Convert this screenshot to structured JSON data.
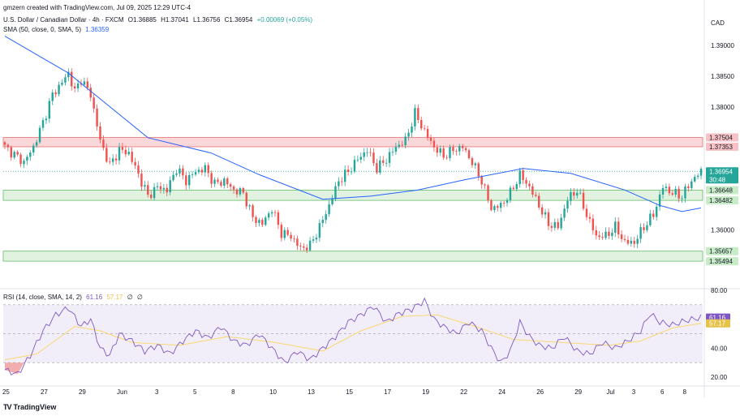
{
  "header": {
    "created_by": "gmzern created with TradingView.com, Jul 09, 2025 12:29 UTC-4",
    "symbol": "U.S. Dollar / Canadian Dollar · 4h · FXCM",
    "open": "O1.36885",
    "high": "H1.37041",
    "low": "L1.36756",
    "close": "C1.36954",
    "change": "+0.00069 (+0.05%)",
    "sma_label": "SMA (50, close, 0, SMA, 5)",
    "sma_value": "1.36359"
  },
  "currency": "CAD",
  "rsi_header": {
    "label": "RSI (14, close, SMA, 14, 2)",
    "rsi_value": "61.16",
    "ma_value": "57.17",
    "extra1": "∅",
    "extra2": "∅"
  },
  "brand": "TradingView",
  "colors": {
    "up": "#26a69a",
    "down": "#ef5350",
    "sma": "#2962ff",
    "rsi": "#7e57c2",
    "rsi_ma": "#f7d870",
    "resistance_zone": "#f8c9cc",
    "support_zone": "#d7efd6"
  },
  "chart_data": [
    {
      "type": "candlestick",
      "title": "U.S. Dollar / Canadian Dollar · 4h · FXCM",
      "ylim": [
        1.351,
        1.395
      ],
      "y_ticks": [
        "1.39000",
        "1.38500",
        "1.38000",
        "1.36000"
      ],
      "x_ticks": [
        "25",
        "27",
        "29",
        "Jun",
        "3",
        "5",
        "8",
        "10",
        "13",
        "15",
        "17",
        "19",
        "22",
        "24",
        "26",
        "29",
        "Jul",
        "3",
        "6",
        "8"
      ],
      "zones": [
        {
          "name": "resistance",
          "top": 1.37504,
          "bottom": 1.37353
        },
        {
          "name": "support-1",
          "top": 1.36648,
          "bottom": 1.36482
        },
        {
          "name": "support-2",
          "top": 1.35657,
          "bottom": 1.35494
        }
      ],
      "price_labels": [
        {
          "label": "1.37504",
          "value": 1.37504,
          "kind": "resistance"
        },
        {
          "label": "1.37353",
          "value": 1.37353,
          "kind": "resistance"
        },
        {
          "label": "1.36954",
          "sublabel": "30:48",
          "value": 1.36954,
          "kind": "last"
        },
        {
          "label": "1.36648",
          "value": 1.36648,
          "kind": "support"
        },
        {
          "label": "1.36482",
          "value": 1.36482,
          "kind": "support"
        },
        {
          "label": "1.35657",
          "value": 1.35657,
          "kind": "support"
        },
        {
          "label": "1.35494",
          "value": 1.35494,
          "kind": "support"
        }
      ],
      "close_path": [
        [
          0,
          1.3735
        ],
        [
          6,
          1.371
        ],
        [
          9,
          1.3735
        ],
        [
          12,
          1.3775
        ],
        [
          15,
          1.382
        ],
        [
          18,
          1.384
        ],
        [
          20,
          1.3855
        ],
        [
          22,
          1.3825
        ],
        [
          24,
          1.3845
        ],
        [
          27,
          1.382
        ],
        [
          30,
          1.3745
        ],
        [
          33,
          1.3705
        ],
        [
          36,
          1.373
        ],
        [
          39,
          1.3725
        ],
        [
          42,
          1.369
        ],
        [
          45,
          1.3655
        ],
        [
          48,
          1.367
        ],
        [
          51,
          1.3665
        ],
        [
          54,
          1.37
        ],
        [
          57,
          1.368
        ],
        [
          60,
          1.3695
        ],
        [
          63,
          1.37
        ],
        [
          66,
          1.3675
        ],
        [
          69,
          1.368
        ],
        [
          72,
          1.3665
        ],
        [
          75,
          1.366
        ],
        [
          78,
          1.362
        ],
        [
          81,
          1.361
        ],
        [
          84,
          1.3635
        ],
        [
          87,
          1.3595
        ],
        [
          90,
          1.359
        ],
        [
          93,
          1.357
        ],
        [
          96,
          1.3575
        ],
        [
          99,
          1.3605
        ],
        [
          102,
          1.364
        ],
        [
          105,
          1.368
        ],
        [
          108,
          1.3695
        ],
        [
          111,
          1.3715
        ],
        [
          114,
          1.373
        ],
        [
          117,
          1.37
        ],
        [
          120,
          1.3715
        ],
        [
          123,
          1.3735
        ],
        [
          126,
          1.3745
        ],
        [
          129,
          1.379
        ],
        [
          132,
          1.376
        ],
        [
          135,
          1.3735
        ],
        [
          138,
          1.372
        ],
        [
          141,
          1.373
        ],
        [
          144,
          1.3735
        ],
        [
          147,
          1.371
        ],
        [
          150,
          1.368
        ],
        [
          153,
          1.3635
        ],
        [
          156,
          1.364
        ],
        [
          159,
          1.366
        ],
        [
          162,
          1.369
        ],
        [
          165,
          1.367
        ],
        [
          168,
          1.364
        ],
        [
          171,
          1.361
        ],
        [
          174,
          1.3605
        ],
        [
          177,
          1.365
        ],
        [
          180,
          1.3665
        ],
        [
          183,
          1.3625
        ],
        [
          186,
          1.359
        ],
        [
          189,
          1.359
        ],
        [
          192,
          1.3605
        ],
        [
          195,
          1.358
        ],
        [
          198,
          1.358
        ],
        [
          201,
          1.3605
        ],
        [
          204,
          1.3625
        ],
        [
          207,
          1.367
        ],
        [
          210,
          1.366
        ],
        [
          213,
          1.3655
        ],
        [
          216,
          1.368
        ],
        [
          219,
          1.3695
        ]
      ],
      "sma": [
        [
          0,
          1.3915
        ],
        [
          20,
          1.3855
        ],
        [
          45,
          1.375
        ],
        [
          65,
          1.3725
        ],
        [
          80,
          1.369
        ],
        [
          100,
          1.365
        ],
        [
          115,
          1.3655
        ],
        [
          130,
          1.3665
        ],
        [
          145,
          1.3682
        ],
        [
          163,
          1.37
        ],
        [
          178,
          1.3692
        ],
        [
          195,
          1.3665
        ],
        [
          206,
          1.364
        ],
        [
          213,
          1.363
        ],
        [
          219,
          1.3636
        ]
      ]
    },
    {
      "type": "line",
      "title": "RSI (14, close, SMA, 14, 2)",
      "ylim": [
        15,
        80
      ],
      "y_ticks": [
        "80.00",
        "60.00",
        "40.00",
        "20.00"
      ],
      "bands": [
        30,
        50,
        70
      ],
      "series": [
        {
          "name": "RSI",
          "values": [
            [
              0,
              25
            ],
            [
              4,
              22
            ],
            [
              8,
              35
            ],
            [
              12,
              52
            ],
            [
              16,
              63
            ],
            [
              20,
              68
            ],
            [
              24,
              55
            ],
            [
              27,
              60
            ],
            [
              30,
              40
            ],
            [
              33,
              35
            ],
            [
              36,
              50
            ],
            [
              40,
              45
            ],
            [
              44,
              38
            ],
            [
              48,
              42
            ],
            [
              52,
              36
            ],
            [
              56,
              45
            ],
            [
              60,
              52
            ],
            [
              64,
              47
            ],
            [
              68,
              55
            ],
            [
              72,
              45
            ],
            [
              76,
              42
            ],
            [
              80,
              50
            ],
            [
              84,
              40
            ],
            [
              88,
              30
            ],
            [
              92,
              38
            ],
            [
              96,
              32
            ],
            [
              100,
              40
            ],
            [
              104,
              48
            ],
            [
              108,
              58
            ],
            [
              112,
              63
            ],
            [
              116,
              69
            ],
            [
              120,
              58
            ],
            [
              124,
              64
            ],
            [
              128,
              67
            ],
            [
              132,
              73
            ],
            [
              135,
              60
            ],
            [
              138,
              55
            ],
            [
              142,
              50
            ],
            [
              146,
              58
            ],
            [
              150,
              52
            ],
            [
              153,
              40
            ],
            [
              156,
              30
            ],
            [
              159,
              38
            ],
            [
              162,
              58
            ],
            [
              165,
              48
            ],
            [
              168,
              42
            ],
            [
              172,
              40
            ],
            [
              176,
              48
            ],
            [
              180,
              38
            ],
            [
              184,
              36
            ],
            [
              188,
              44
            ],
            [
              192,
              40
            ],
            [
              196,
              45
            ],
            [
              200,
              52
            ],
            [
              203,
              64
            ],
            [
              206,
              58
            ],
            [
              210,
              56
            ],
            [
              214,
              59
            ],
            [
              219,
              61.16
            ]
          ]
        },
        {
          "name": "RSI-based MA",
          "values": [
            [
              0,
              32
            ],
            [
              10,
              36
            ],
            [
              22,
              55
            ],
            [
              30,
              52
            ],
            [
              40,
              44
            ],
            [
              55,
              42
            ],
            [
              70,
              48
            ],
            [
              85,
              44
            ],
            [
              100,
              38
            ],
            [
              112,
              52
            ],
            [
              125,
              62
            ],
            [
              136,
              63
            ],
            [
              148,
              55
            ],
            [
              160,
              46
            ],
            [
              175,
              44
            ],
            [
              190,
              42
            ],
            [
              200,
              45
            ],
            [
              210,
              54
            ],
            [
              219,
              57.17
            ]
          ]
        }
      ]
    }
  ]
}
